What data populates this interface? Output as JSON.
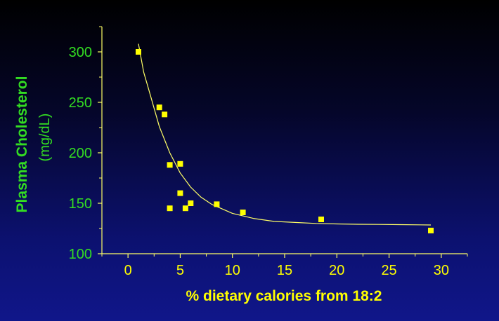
{
  "chart_data": {
    "type": "scatter",
    "title": "",
    "xlabel": "% dietary calories from 18:2",
    "ylabel": "Plasma Cholesterol",
    "ylabel_unit": "(mg/dL)",
    "xlim": [
      -2.5,
      32.5
    ],
    "ylim": [
      100,
      325
    ],
    "x_ticks": [
      0,
      5,
      10,
      15,
      20,
      25,
      30
    ],
    "y_ticks": [
      100,
      150,
      200,
      250,
      300
    ],
    "grid": false,
    "points": [
      {
        "x": 1.0,
        "y": 300
      },
      {
        "x": 3.0,
        "y": 245
      },
      {
        "x": 3.5,
        "y": 238
      },
      {
        "x": 4.0,
        "y": 188
      },
      {
        "x": 5.0,
        "y": 189
      },
      {
        "x": 5.0,
        "y": 160
      },
      {
        "x": 4.0,
        "y": 145
      },
      {
        "x": 5.5,
        "y": 145
      },
      {
        "x": 6.0,
        "y": 150
      },
      {
        "x": 8.5,
        "y": 149
      },
      {
        "x": 11.0,
        "y": 141
      },
      {
        "x": 18.5,
        "y": 134
      },
      {
        "x": 29.0,
        "y": 123
      }
    ],
    "fit_curve": {
      "type": "exponential-decay",
      "x": [
        1.0,
        1.5,
        2,
        3,
        4,
        5,
        6,
        7,
        8,
        10,
        12,
        14,
        16,
        18,
        20,
        22,
        24,
        26,
        28,
        29
      ],
      "y": [
        308,
        280,
        262,
        226,
        200,
        180,
        166,
        156,
        149,
        140,
        135,
        132,
        131,
        130,
        129.5,
        129.2,
        129,
        128.8,
        128.6,
        128.5
      ]
    },
    "colors": {
      "axis": "#ffff66",
      "points": "#ffff00",
      "curve": "#ffff66",
      "y_labels": "#33dd22",
      "x_labels": "#ffff00"
    }
  }
}
